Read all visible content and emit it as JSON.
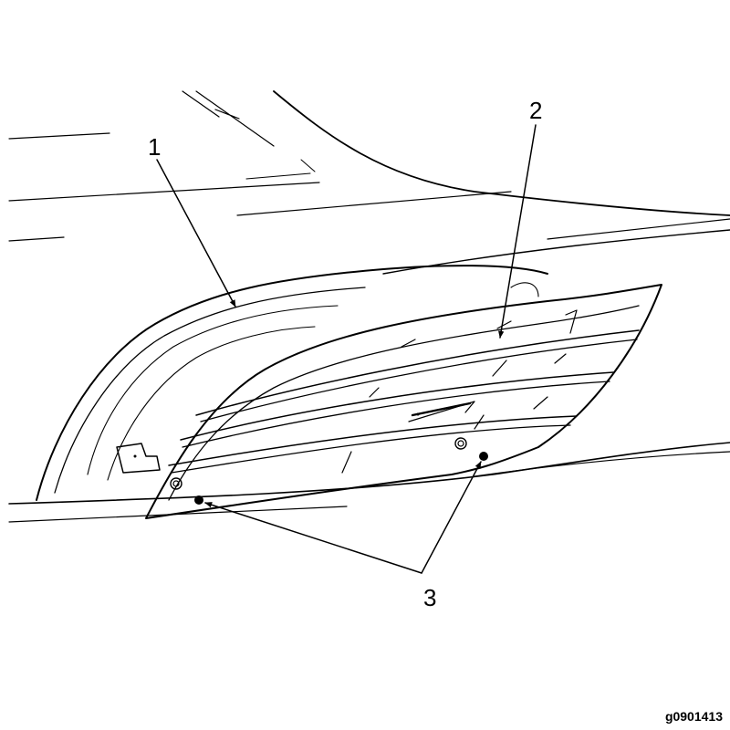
{
  "callouts": {
    "c1": "1",
    "c2": "2",
    "c3": "3"
  },
  "figure_id": "g0901413"
}
